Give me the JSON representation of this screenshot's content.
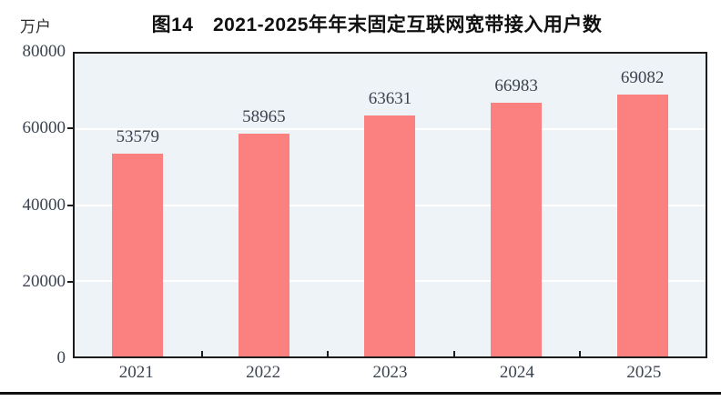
{
  "figure": {
    "title": "图14　2021-2025年年末固定互联网宽带接入用户数",
    "unit_label": "万户"
  },
  "chart_data": {
    "type": "bar",
    "title": "图14　2021-2025年年末固定互联网宽带接入用户数",
    "unit": "万户",
    "categories": [
      "2021",
      "2022",
      "2023",
      "2024",
      "2025"
    ],
    "values": [
      53579,
      58965,
      63631,
      66983,
      69082
    ],
    "data_labels": [
      "53579",
      "58965",
      "63631",
      "66983",
      "69082"
    ],
    "xlabel": "",
    "ylabel": "万户",
    "ylim": [
      0,
      80000
    ],
    "yticks": [
      0,
      20000,
      40000,
      60000,
      80000
    ],
    "ytick_labels": [
      "0",
      "20000",
      "40000",
      "60000",
      "80000"
    ],
    "grid": "horizontal",
    "legend_position": "none",
    "colors": {
      "bar": "#fb8080",
      "plot_background": "#edf3f6",
      "gridline": "#ffffff",
      "axis_border": "#1c1c1c",
      "label_text": "#3b4450",
      "title_text": "#111111"
    }
  }
}
